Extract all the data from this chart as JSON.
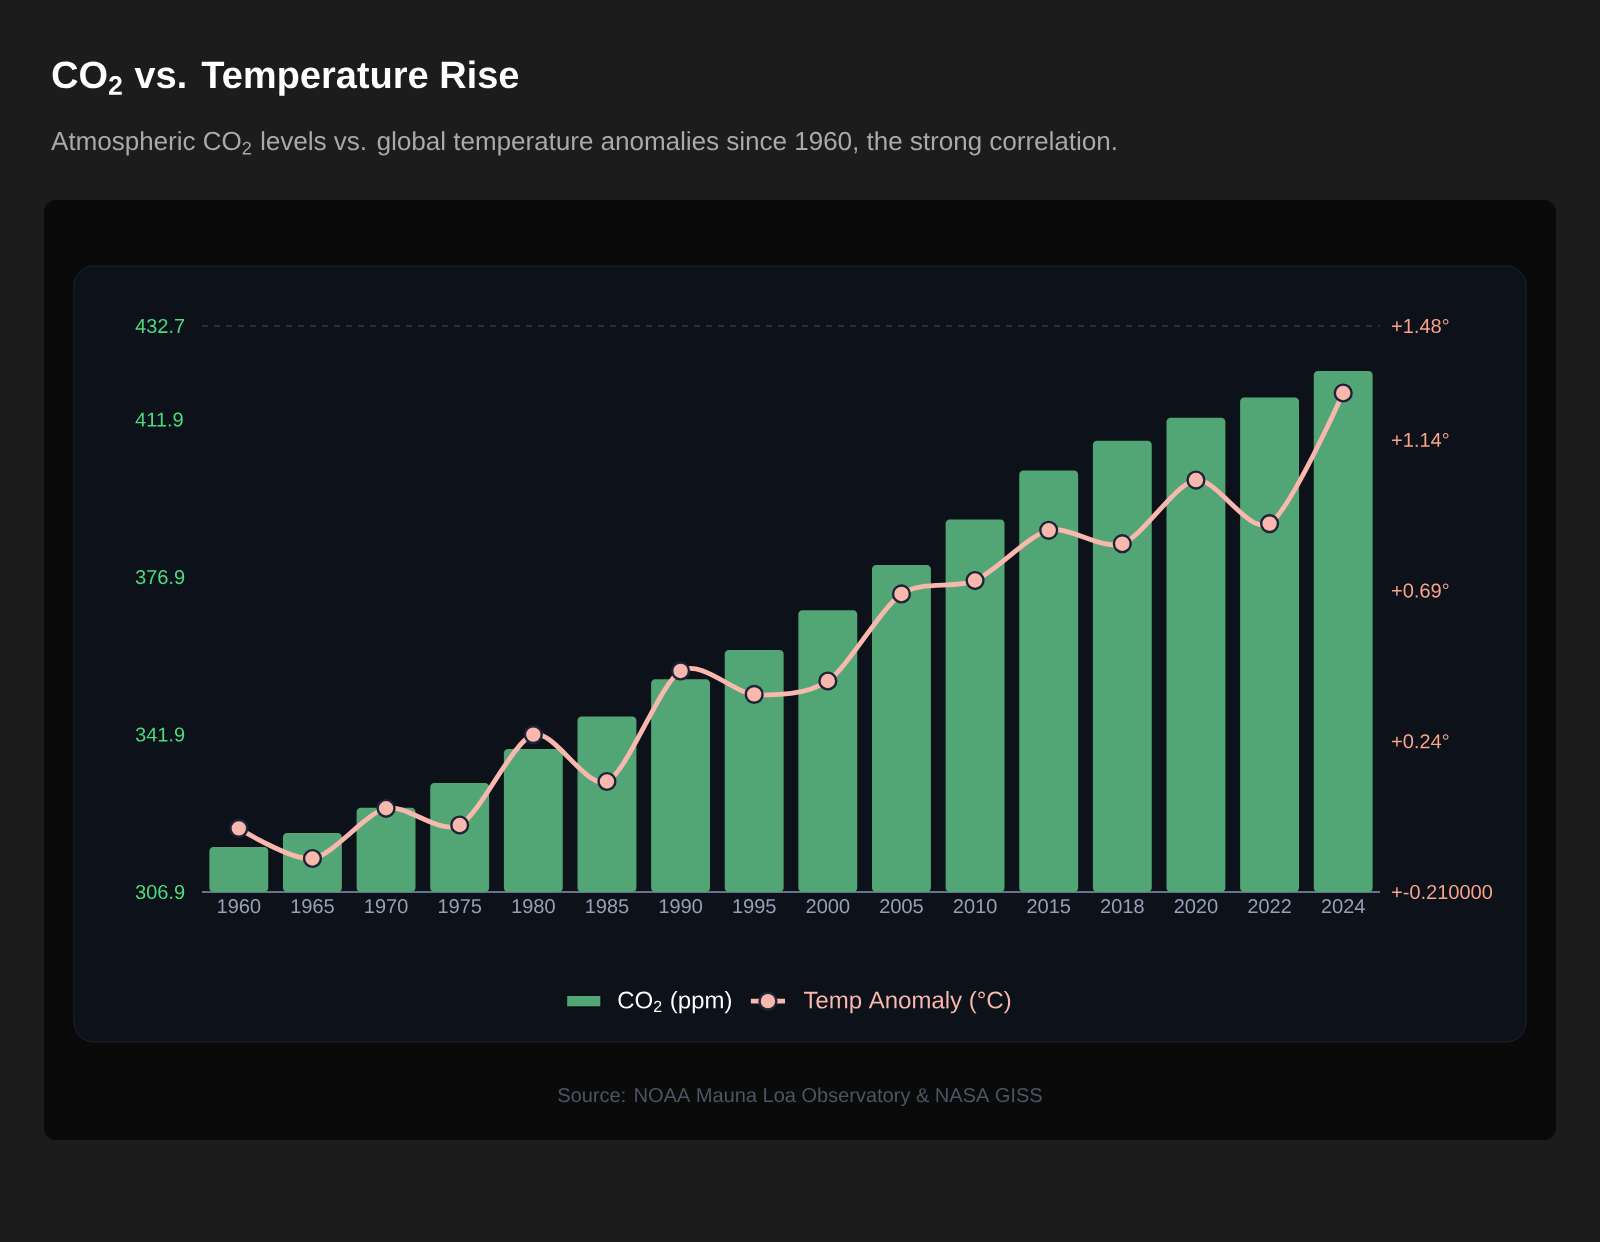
{
  "chart_data": {
    "type": "bar",
    "title": "CO$_{2}$ vs. Temperature Rise",
    "subtitle": "Atmospheric CO$_{2}$ levels vs. global temperature anomalies since 1960, the strong correlation.",
    "categories": [
      "1960",
      "1965",
      "1970",
      "1975",
      "1980",
      "1985",
      "1990",
      "1995",
      "2000",
      "2005",
      "2010",
      "2015",
      "2018",
      "2020",
      "2022",
      "2024"
    ],
    "series": [
      {
        "name": "CO$_{2}$ (ppm)",
        "color": "#52a574",
        "values": [
          316.9,
          320.0,
          325.6,
          331.1,
          338.7,
          345.9,
          354.2,
          360.7,
          369.5,
          379.6,
          389.7,
          400.6,
          407.2,
          412.3,
          416.8,
          422.7
        ]
      },
      {
        "name": "Temp Anomaly (°C)",
        "type": "line",
        "axis": "y2",
        "color": "#f9b8ae",
        "marker": "circle",
        "values": [
          -0.02,
          -0.11,
          0.04,
          -0.01,
          0.26,
          0.12,
          0.45,
          0.38,
          0.42,
          0.68,
          0.72,
          0.87,
          0.83,
          1.02,
          0.89,
          1.28
        ]
      }
    ],
    "ylim": [
      306.9,
      432.7
    ],
    "yticks": [
      306.9,
      341.9,
      376.9,
      411.9,
      432.7
    ],
    "y2lim": [
      -0.21,
      1.48
    ],
    "y2ticks": [
      {
        "value": -0.21,
        "label": "+-0.210000"
      },
      {
        "value": 0.24,
        "label": "+0.24°"
      },
      {
        "value": 0.69,
        "label": "+0.69°"
      },
      {
        "value": 1.14,
        "label": "+1.14°"
      },
      {
        "value": 1.48,
        "label": "+1.48°"
      }
    ],
    "ref_lines": [
      {
        "axis": "y",
        "value": 432.7,
        "color": "#2e3a4a",
        "line_style": "dashed"
      }
    ],
    "legend": "bottom",
    "annotations": [
      "Source: NOAA Mauna Loa Observatory & NASA GISS"
    ]
  }
}
